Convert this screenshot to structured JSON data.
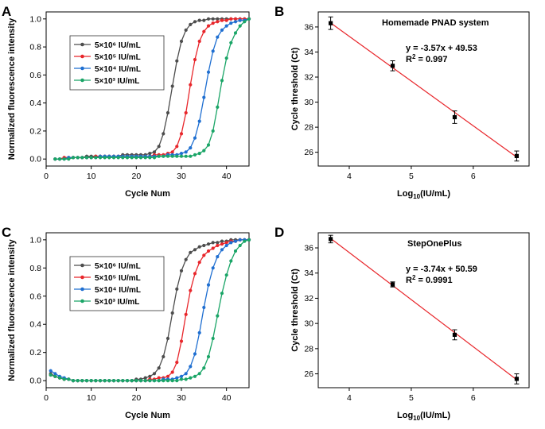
{
  "colors": {
    "axis": "#000000",
    "fit": "#e8262b"
  },
  "chart_data": [
    {
      "panel": "A",
      "type": "line",
      "xlabel": "Cycle Num",
      "ylabel": "Normalized fluorescence intensity",
      "xlim": [
        0,
        45
      ],
      "ylim": [
        -0.05,
        1.05
      ],
      "xticks": [
        "0",
        "10",
        "20",
        "30",
        "40"
      ],
      "yticks": [
        "0.0",
        "0.2",
        "0.4",
        "0.6",
        "0.8",
        "1.0"
      ],
      "legend_position": "upper-left",
      "series": [
        {
          "name": "5×10⁶ IU/mL",
          "color": "#4d4d4d",
          "marker": "circle",
          "x": [
            2,
            3,
            4,
            5,
            6,
            7,
            8,
            9,
            10,
            11,
            12,
            13,
            14,
            15,
            16,
            17,
            18,
            19,
            20,
            21,
            22,
            23,
            24,
            25,
            26,
            27,
            28,
            29,
            30,
            31,
            32,
            33,
            34,
            35,
            36,
            37,
            38,
            39,
            40,
            41,
            42,
            43,
            44,
            45
          ],
          "y": [
            0.0,
            0.0,
            0.01,
            0.01,
            0.01,
            0.01,
            0.01,
            0.02,
            0.02,
            0.02,
            0.02,
            0.02,
            0.02,
            0.02,
            0.02,
            0.03,
            0.03,
            0.03,
            0.03,
            0.03,
            0.03,
            0.04,
            0.05,
            0.09,
            0.18,
            0.33,
            0.52,
            0.7,
            0.84,
            0.92,
            0.96,
            0.98,
            0.99,
            0.99,
            1.0,
            1.0,
            1.0,
            1.0,
            1.0,
            1.0,
            1.0,
            1.0,
            1.0,
            1.0
          ]
        },
        {
          "name": "5×10⁵ IU/mL",
          "color": "#e8262b",
          "marker": "circle",
          "x": [
            2,
            3,
            4,
            5,
            6,
            7,
            8,
            9,
            10,
            11,
            12,
            13,
            14,
            15,
            16,
            17,
            18,
            19,
            20,
            21,
            22,
            23,
            24,
            25,
            26,
            27,
            28,
            29,
            30,
            31,
            32,
            33,
            34,
            35,
            36,
            37,
            38,
            39,
            40,
            41,
            42,
            43,
            44,
            45
          ],
          "y": [
            0.0,
            0.0,
            0.01,
            0.01,
            0.01,
            0.01,
            0.01,
            0.01,
            0.01,
            0.02,
            0.02,
            0.02,
            0.02,
            0.02,
            0.02,
            0.02,
            0.02,
            0.02,
            0.02,
            0.02,
            0.02,
            0.02,
            0.03,
            0.03,
            0.03,
            0.04,
            0.05,
            0.09,
            0.18,
            0.33,
            0.53,
            0.71,
            0.84,
            0.91,
            0.95,
            0.97,
            0.98,
            0.99,
            0.99,
            1.0,
            1.0,
            1.0,
            1.0,
            1.0
          ]
        },
        {
          "name": "5×10⁴ IU/mL",
          "color": "#1f6fd1",
          "marker": "circle",
          "x": [
            2,
            3,
            4,
            5,
            6,
            7,
            8,
            9,
            10,
            11,
            12,
            13,
            14,
            15,
            16,
            17,
            18,
            19,
            20,
            21,
            22,
            23,
            24,
            25,
            26,
            27,
            28,
            29,
            30,
            31,
            32,
            33,
            34,
            35,
            36,
            37,
            38,
            39,
            40,
            41,
            42,
            43,
            44,
            45
          ],
          "y": [
            0.0,
            0.0,
            0.0,
            0.01,
            0.01,
            0.01,
            0.01,
            0.01,
            0.01,
            0.01,
            0.02,
            0.02,
            0.02,
            0.02,
            0.02,
            0.02,
            0.02,
            0.02,
            0.02,
            0.02,
            0.02,
            0.02,
            0.02,
            0.02,
            0.02,
            0.03,
            0.03,
            0.03,
            0.04,
            0.05,
            0.08,
            0.15,
            0.27,
            0.44,
            0.62,
            0.77,
            0.87,
            0.92,
            0.95,
            0.97,
            0.98,
            0.99,
            0.99,
            1.0
          ]
        },
        {
          "name": "5×10³ IU/mL",
          "color": "#1aa567",
          "marker": "circle",
          "x": [
            2,
            3,
            4,
            5,
            6,
            7,
            8,
            9,
            10,
            11,
            12,
            13,
            14,
            15,
            16,
            17,
            18,
            19,
            20,
            21,
            22,
            23,
            24,
            25,
            26,
            27,
            28,
            29,
            30,
            31,
            32,
            33,
            34,
            35,
            36,
            37,
            38,
            39,
            40,
            41,
            42,
            43,
            44,
            45
          ],
          "y": [
            0.0,
            0.0,
            0.0,
            0.0,
            0.01,
            0.01,
            0.01,
            0.01,
            0.01,
            0.01,
            0.01,
            0.01,
            0.01,
            0.01,
            0.01,
            0.01,
            0.01,
            0.01,
            0.01,
            0.01,
            0.01,
            0.01,
            0.01,
            0.02,
            0.02,
            0.02,
            0.02,
            0.02,
            0.02,
            0.02,
            0.02,
            0.03,
            0.04,
            0.06,
            0.1,
            0.2,
            0.37,
            0.56,
            0.72,
            0.83,
            0.9,
            0.95,
            0.98,
            1.0
          ]
        }
      ]
    },
    {
      "panel": "B",
      "type": "scatter",
      "title": "Homemade PNAD system",
      "equation": "y = -3.57x + 49.53",
      "r2_label": "R",
      "r2_sup": "2",
      "r2_value": " = 0.997",
      "xlabel_main": "Log",
      "xlabel_sub": "10",
      "xlabel_rest": "(IU/mL)",
      "ylabel": "Cycle threshold (Ct)",
      "xlim": [
        3.5,
        6.9
      ],
      "ylim": [
        24.9,
        37.2
      ],
      "xticks": [
        "4",
        "5",
        "6"
      ],
      "yticks": [
        "26",
        "28",
        "30",
        "32",
        "34",
        "36"
      ],
      "fit": {
        "slope": -3.57,
        "intercept": 49.53
      },
      "points": [
        {
          "x": 3.7,
          "y": 36.3,
          "err": 0.5
        },
        {
          "x": 4.7,
          "y": 32.9,
          "err": 0.4
        },
        {
          "x": 5.7,
          "y": 28.8,
          "err": 0.5
        },
        {
          "x": 6.7,
          "y": 25.7,
          "err": 0.4
        }
      ]
    },
    {
      "panel": "C",
      "type": "line",
      "xlabel": "Cycle Num",
      "ylabel": "Normalized fluorescence intensity",
      "xlim": [
        0,
        45
      ],
      "ylim": [
        -0.05,
        1.05
      ],
      "xticks": [
        "0",
        "10",
        "20",
        "30",
        "40"
      ],
      "yticks": [
        "0.0",
        "0.2",
        "0.4",
        "0.6",
        "0.8",
        "1.0"
      ],
      "legend_position": "upper-left",
      "series": [
        {
          "name": "5×10⁶ IU/mL",
          "color": "#4d4d4d",
          "marker": "circle",
          "x": [
            1,
            2,
            3,
            4,
            5,
            6,
            7,
            8,
            9,
            10,
            11,
            12,
            13,
            14,
            15,
            16,
            17,
            18,
            19,
            20,
            21,
            22,
            23,
            24,
            25,
            26,
            27,
            28,
            29,
            30,
            31,
            32,
            33,
            34,
            35,
            36,
            37,
            38,
            39,
            40,
            41,
            42,
            43,
            44,
            45
          ],
          "y": [
            0.05,
            0.03,
            0.02,
            0.01,
            0.01,
            0.0,
            0.0,
            0.0,
            0.0,
            0.0,
            0.0,
            0.0,
            0.0,
            0.0,
            0.0,
            0.0,
            0.0,
            0.0,
            0.0,
            0.01,
            0.01,
            0.02,
            0.03,
            0.05,
            0.09,
            0.17,
            0.3,
            0.48,
            0.65,
            0.78,
            0.86,
            0.91,
            0.93,
            0.95,
            0.96,
            0.97,
            0.98,
            0.98,
            0.99,
            0.99,
            1.0,
            1.0,
            1.0,
            1.0,
            1.0
          ]
        },
        {
          "name": "5×10⁵ IU/mL",
          "color": "#e8262b",
          "marker": "circle",
          "x": [
            1,
            2,
            3,
            4,
            5,
            6,
            7,
            8,
            9,
            10,
            11,
            12,
            13,
            14,
            15,
            16,
            17,
            18,
            19,
            20,
            21,
            22,
            23,
            24,
            25,
            26,
            27,
            28,
            29,
            30,
            31,
            32,
            33,
            34,
            35,
            36,
            37,
            38,
            39,
            40,
            41,
            42,
            43,
            44,
            45
          ],
          "y": [
            0.04,
            0.03,
            0.02,
            0.01,
            0.01,
            0.0,
            0.0,
            0.0,
            0.0,
            0.0,
            0.0,
            0.0,
            0.0,
            0.0,
            0.0,
            0.0,
            0.0,
            0.0,
            0.0,
            0.0,
            0.0,
            0.0,
            0.01,
            0.01,
            0.02,
            0.02,
            0.03,
            0.06,
            0.13,
            0.28,
            0.47,
            0.64,
            0.76,
            0.84,
            0.89,
            0.92,
            0.94,
            0.96,
            0.97,
            0.98,
            0.99,
            0.99,
            1.0,
            1.0,
            1.0
          ]
        },
        {
          "name": "5×10⁴ IU/mL",
          "color": "#1f6fd1",
          "marker": "circle",
          "x": [
            1,
            2,
            3,
            4,
            5,
            6,
            7,
            8,
            9,
            10,
            11,
            12,
            13,
            14,
            15,
            16,
            17,
            18,
            19,
            20,
            21,
            22,
            23,
            24,
            25,
            26,
            27,
            28,
            29,
            30,
            31,
            32,
            33,
            34,
            35,
            36,
            37,
            38,
            39,
            40,
            41,
            42,
            43,
            44,
            45
          ],
          "y": [
            0.07,
            0.05,
            0.03,
            0.02,
            0.01,
            0.0,
            0.0,
            0.0,
            0.0,
            0.0,
            0.0,
            0.0,
            0.0,
            0.0,
            0.0,
            0.0,
            0.0,
            0.0,
            0.0,
            0.0,
            0.0,
            0.0,
            0.0,
            0.0,
            0.0,
            0.01,
            0.01,
            0.01,
            0.02,
            0.03,
            0.05,
            0.1,
            0.19,
            0.34,
            0.52,
            0.68,
            0.8,
            0.88,
            0.93,
            0.96,
            0.98,
            0.99,
            1.0,
            1.0,
            1.0
          ]
        },
        {
          "name": "5×10³ IU/mL",
          "color": "#1aa567",
          "marker": "circle",
          "x": [
            1,
            2,
            3,
            4,
            5,
            6,
            7,
            8,
            9,
            10,
            11,
            12,
            13,
            14,
            15,
            16,
            17,
            18,
            19,
            20,
            21,
            22,
            23,
            24,
            25,
            26,
            27,
            28,
            29,
            30,
            31,
            32,
            33,
            34,
            35,
            36,
            37,
            38,
            39,
            40,
            41,
            42,
            43,
            44,
            45
          ],
          "y": [
            0.04,
            0.03,
            0.02,
            0.01,
            0.01,
            0.0,
            0.0,
            0.0,
            0.0,
            0.0,
            0.0,
            0.0,
            0.0,
            0.0,
            0.0,
            0.0,
            0.0,
            0.0,
            0.0,
            0.0,
            0.0,
            0.0,
            0.0,
            0.0,
            0.0,
            0.0,
            0.0,
            0.0,
            0.0,
            0.01,
            0.01,
            0.02,
            0.03,
            0.05,
            0.09,
            0.17,
            0.3,
            0.46,
            0.62,
            0.75,
            0.85,
            0.92,
            0.96,
            0.99,
            1.0
          ]
        }
      ]
    },
    {
      "panel": "D",
      "type": "scatter",
      "title": "StepOnePlus",
      "equation": "y = -3.74x + 50.59",
      "r2_label": "R",
      "r2_sup": "2",
      "r2_value": " = 0.9991",
      "xlabel_main": "Log",
      "xlabel_sub": "10",
      "xlabel_rest": "(IU/mL)",
      "ylabel": "Cycle threshold (Ct)",
      "xlim": [
        3.5,
        6.9
      ],
      "ylim": [
        24.9,
        37.2
      ],
      "xticks": [
        "4",
        "5",
        "6"
      ],
      "yticks": [
        "26",
        "28",
        "30",
        "32",
        "34",
        "36"
      ],
      "fit": {
        "slope": -3.74,
        "intercept": 50.59
      },
      "points": [
        {
          "x": 3.7,
          "y": 36.7,
          "err": 0.3
        },
        {
          "x": 4.7,
          "y": 33.1,
          "err": 0.2
        },
        {
          "x": 5.7,
          "y": 29.1,
          "err": 0.4
        },
        {
          "x": 6.7,
          "y": 25.6,
          "err": 0.4
        }
      ]
    }
  ]
}
